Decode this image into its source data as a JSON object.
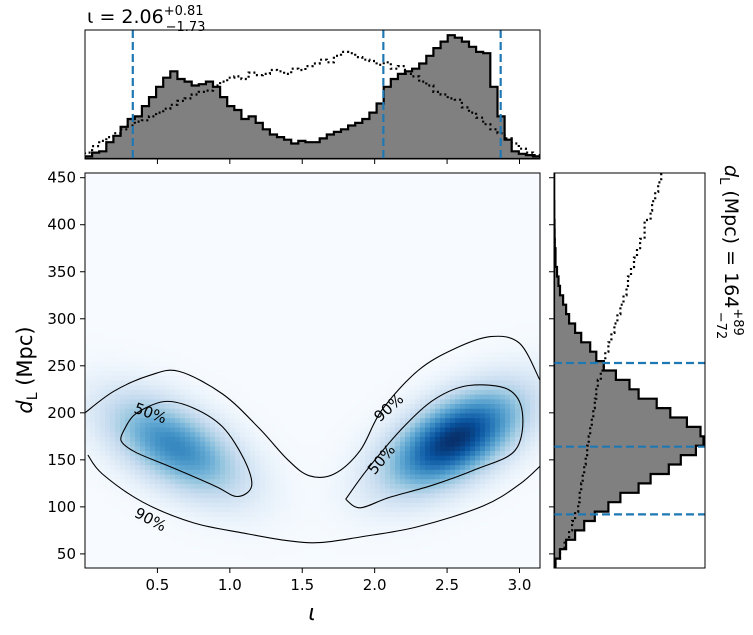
{
  "chart_data": {
    "type": "corner-plot",
    "top_title": {
      "prefix": "ι = 2.06",
      "sup": "+0.81",
      "sub": "−1.73"
    },
    "right_title": {
      "prefix": "d",
      "sub_L": "L",
      "mid": " (Mpc) = 164",
      "sup": "+89",
      "sub": "−72"
    },
    "main": {
      "type": "heatmap",
      "xlabel": "ι",
      "ylabel": "d_L (Mpc)",
      "xlim": [
        0.0,
        3.14159
      ],
      "ylim": [
        35,
        455
      ],
      "xticks": [
        0.5,
        1.0,
        1.5,
        2.0,
        2.5,
        3.0
      ],
      "xtick_labels": [
        "0.5",
        "1.0",
        "1.5",
        "2.0",
        "2.5",
        "3.0"
      ],
      "yticks": [
        50,
        100,
        150,
        200,
        250,
        300,
        350,
        400,
        450
      ],
      "ytick_labels": [
        "50",
        "100",
        "150",
        "200",
        "250",
        "300",
        "350",
        "400",
        "450"
      ],
      "colormap": "Blues",
      "modes": [
        {
          "x": 0.62,
          "y": 165,
          "sx": 0.3,
          "sy": 34,
          "rho": -0.55,
          "w": 0.62
        },
        {
          "x": 2.55,
          "y": 172,
          "sx": 0.3,
          "sy": 34,
          "rho": 0.55,
          "w": 1.0
        }
      ],
      "contour_labels": [
        {
          "text": "50%",
          "x": 0.45,
          "y": 199,
          "rotate": 20
        },
        {
          "text": "90%",
          "x": 0.45,
          "y": 86,
          "rotate": 28
        },
        {
          "text": "90%",
          "x": 2.1,
          "y": 205,
          "rotate": -42
        },
        {
          "text": "50%",
          "x": 2.05,
          "y": 150,
          "rotate": -50
        }
      ],
      "contour_50": [
        [
          [
            0.27,
            182
          ],
          [
            0.35,
            199
          ],
          [
            0.55,
            212
          ],
          [
            0.75,
            205
          ],
          [
            0.95,
            185
          ],
          [
            1.1,
            150
          ],
          [
            1.15,
            122
          ],
          [
            1.05,
            111
          ],
          [
            0.9,
            122
          ],
          [
            0.6,
            142
          ],
          [
            0.35,
            158
          ],
          [
            0.25,
            170
          ],
          [
            0.27,
            182
          ]
        ],
        [
          [
            1.8,
            108
          ],
          [
            1.9,
            99
          ],
          [
            2.1,
            110
          ],
          [
            2.4,
            123
          ],
          [
            2.7,
            140
          ],
          [
            2.97,
            160
          ],
          [
            3.02,
            200
          ],
          [
            2.92,
            225
          ],
          [
            2.65,
            229
          ],
          [
            2.42,
            215
          ],
          [
            2.2,
            185
          ],
          [
            1.95,
            140
          ],
          [
            1.8,
            108
          ]
        ]
      ],
      "contour_90": [
        [
          [
            0.0,
            200
          ],
          [
            0.2,
            223
          ],
          [
            0.45,
            240
          ],
          [
            0.65,
            244
          ],
          [
            0.95,
            220
          ],
          [
            1.2,
            184
          ],
          [
            1.4,
            150
          ],
          [
            1.55,
            133
          ],
          [
            1.72,
            135
          ],
          [
            1.9,
            160
          ],
          [
            2.05,
            203
          ],
          [
            2.3,
            245
          ],
          [
            2.55,
            268
          ],
          [
            2.8,
            281
          ],
          [
            3.0,
            274
          ],
          [
            3.14,
            235
          ]
        ],
        [
          [
            0.02,
            155
          ],
          [
            0.12,
            135
          ],
          [
            0.4,
            105
          ],
          [
            0.75,
            83
          ],
          [
            1.1,
            72
          ],
          [
            1.4,
            64
          ],
          [
            1.62,
            62
          ],
          [
            1.9,
            68
          ],
          [
            2.3,
            79
          ],
          [
            2.75,
            101
          ],
          [
            3.0,
            124
          ],
          [
            3.14,
            143
          ]
        ]
      ]
    },
    "top_hist": {
      "bin_edges_start": 0.0,
      "bin_width": 0.0491,
      "series": [
        {
          "style": "filled-step",
          "color": "#808080",
          "values": [
            0.02,
            0.05,
            0.06,
            0.13,
            0.18,
            0.25,
            0.31,
            0.33,
            0.41,
            0.48,
            0.56,
            0.63,
            0.68,
            0.62,
            0.6,
            0.57,
            0.58,
            0.6,
            0.56,
            0.48,
            0.41,
            0.38,
            0.31,
            0.33,
            0.28,
            0.23,
            0.19,
            0.17,
            0.15,
            0.12,
            0.14,
            0.13,
            0.13,
            0.16,
            0.19,
            0.21,
            0.23,
            0.26,
            0.28,
            0.31,
            0.36,
            0.43,
            0.56,
            0.62,
            0.66,
            0.68,
            0.7,
            0.74,
            0.8,
            0.86,
            0.91,
            0.96,
            0.94,
            0.91,
            0.87,
            0.83,
            0.82,
            0.56,
            0.33,
            0.15,
            0.06,
            0.04,
            0.03,
            0.02
          ]
        },
        {
          "style": "dotted-step",
          "color": "#000000",
          "values": [
            0.05,
            0.1,
            0.14,
            0.17,
            0.2,
            0.23,
            0.26,
            0.29,
            0.3,
            0.33,
            0.36,
            0.39,
            0.42,
            0.45,
            0.47,
            0.5,
            0.52,
            0.53,
            0.57,
            0.6,
            0.63,
            0.64,
            0.62,
            0.67,
            0.65,
            0.66,
            0.69,
            0.68,
            0.66,
            0.7,
            0.69,
            0.72,
            0.74,
            0.77,
            0.75,
            0.8,
            0.83,
            0.82,
            0.79,
            0.77,
            0.76,
            0.73,
            0.75,
            0.7,
            0.72,
            0.66,
            0.64,
            0.6,
            0.57,
            0.52,
            0.5,
            0.47,
            0.46,
            0.4,
            0.36,
            0.32,
            0.27,
            0.23,
            0.2,
            0.16,
            0.12,
            0.08,
            0.05,
            0.03
          ]
        }
      ],
      "quantile_lines": [
        0.33,
        2.06,
        2.87
      ]
    },
    "right_hist": {
      "range": [
        35,
        455
      ],
      "bin_width": 10,
      "series": [
        {
          "style": "filled-step",
          "color": "#808080",
          "values": [
            0.01,
            0.04,
            0.08,
            0.14,
            0.2,
            0.27,
            0.36,
            0.44,
            0.56,
            0.64,
            0.76,
            0.84,
            0.94,
            0.99,
            0.97,
            0.88,
            0.77,
            0.68,
            0.56,
            0.5,
            0.41,
            0.33,
            0.28,
            0.24,
            0.18,
            0.14,
            0.1,
            0.08,
            0.06,
            0.04,
            0.03,
            0.02,
            0.01,
            0.01,
            0.005,
            0.004,
            0.003,
            0.002,
            0.002,
            0.001,
            0.001,
            0.001
          ]
        },
        {
          "style": "dotted-step",
          "color": "#000000",
          "values": [
            0.01,
            0.04,
            0.07,
            0.1,
            0.12,
            0.14,
            0.16,
            0.17,
            0.18,
            0.19,
            0.2,
            0.21,
            0.22,
            0.23,
            0.24,
            0.25,
            0.26,
            0.27,
            0.28,
            0.29,
            0.31,
            0.33,
            0.34,
            0.36,
            0.38,
            0.4,
            0.42,
            0.44,
            0.46,
            0.48,
            0.49,
            0.51,
            0.53,
            0.55,
            0.57,
            0.6,
            0.6,
            0.64,
            0.65,
            0.67,
            0.69,
            0.71
          ]
        }
      ],
      "quantile_lines": [
        92,
        164,
        253
      ]
    }
  }
}
